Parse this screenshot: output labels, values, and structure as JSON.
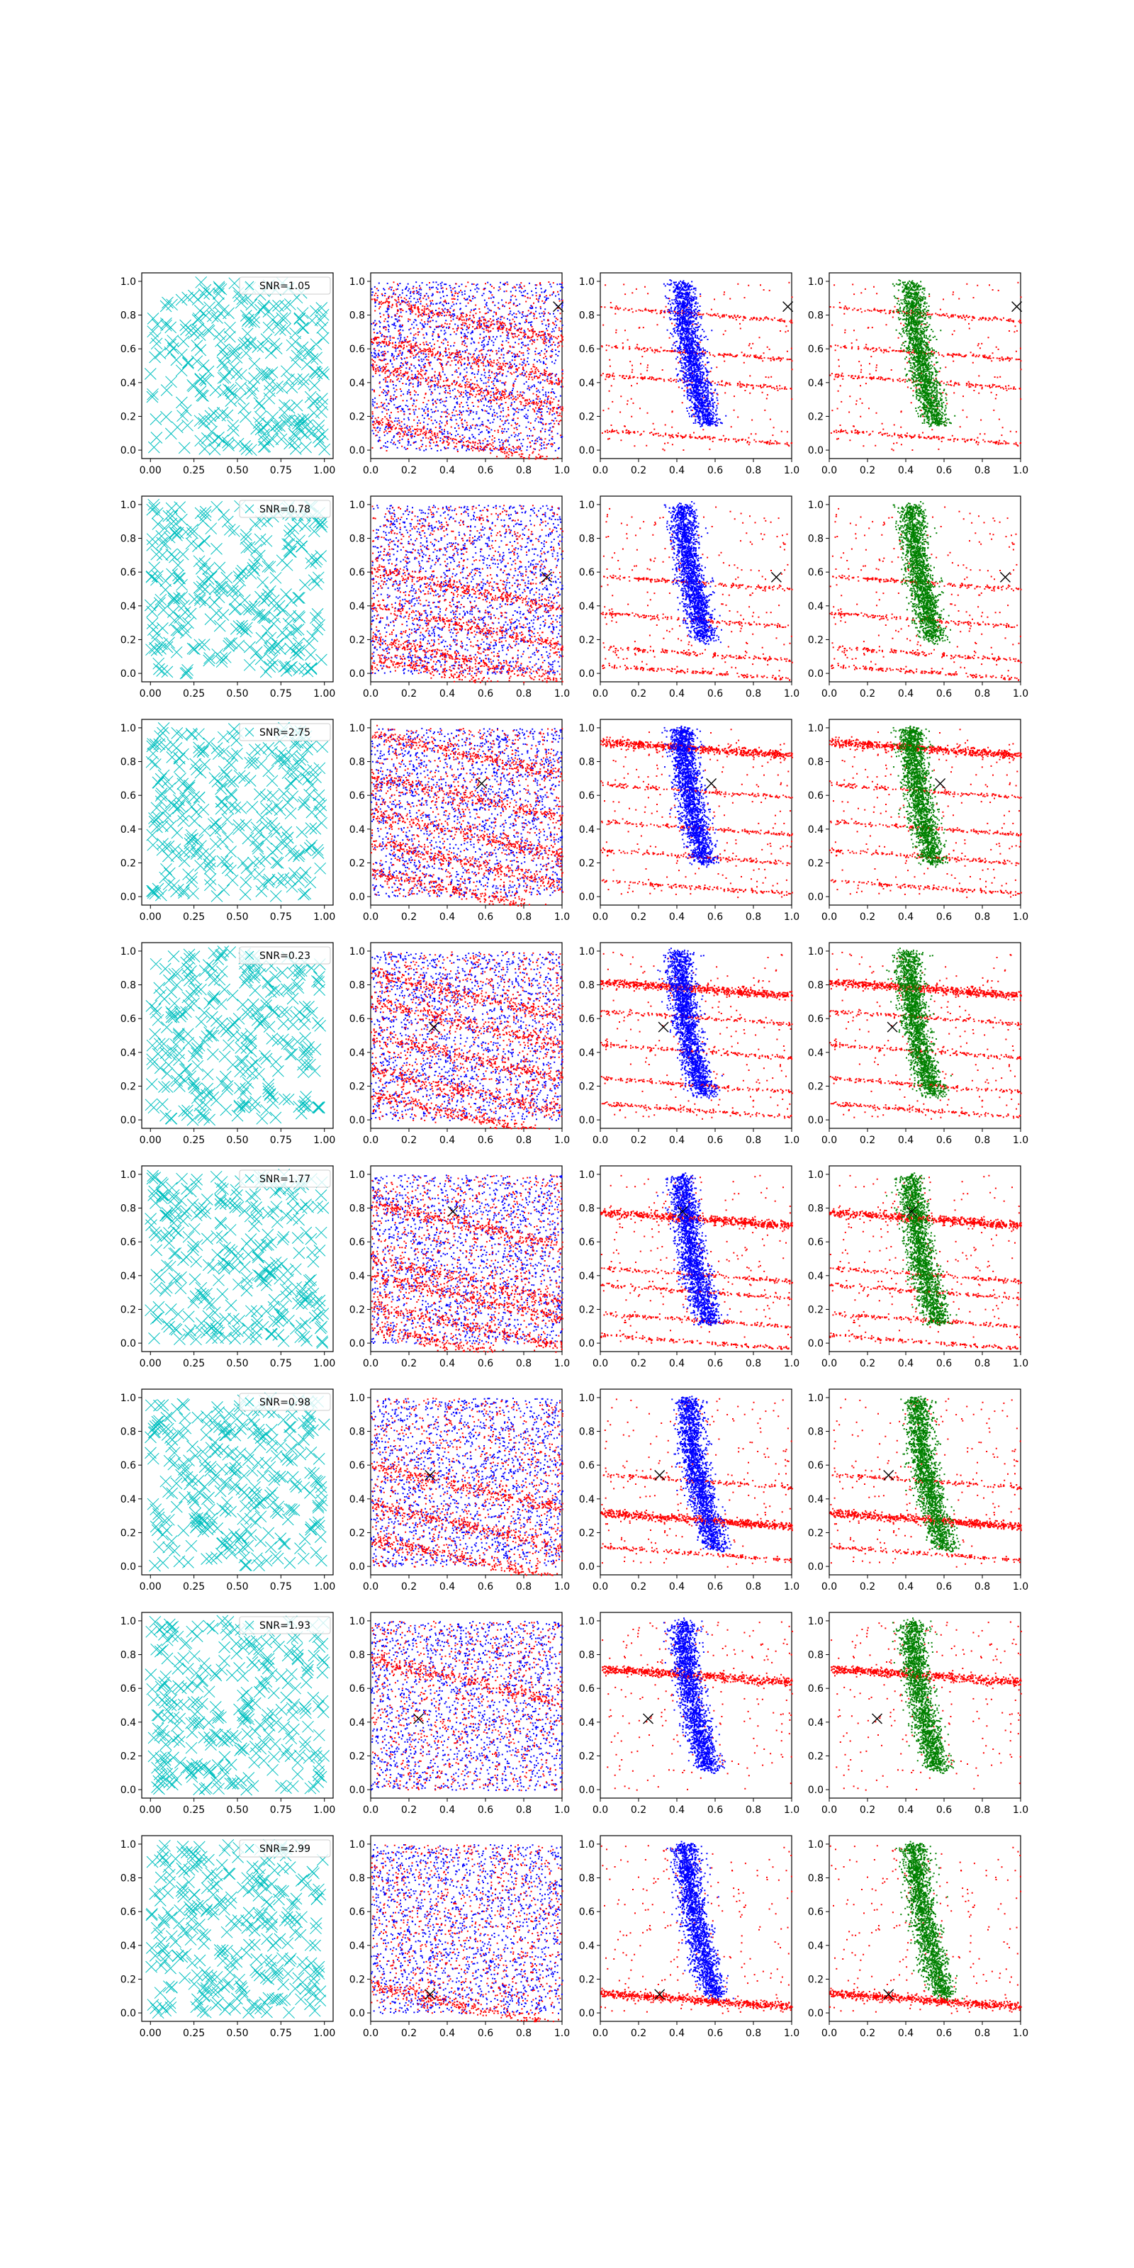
{
  "figure": {
    "rows": 8,
    "cols": 4
  },
  "colors": {
    "cross": "#00bfbf",
    "red": "#ff0000",
    "blue": "#0000ff",
    "green": "#008000",
    "marker": "#000000"
  },
  "ticks": {
    "col0": [
      "0.00",
      "0.25",
      "0.50",
      "0.75",
      "1.00"
    ],
    "col0_y": [
      "0.0",
      "0.2",
      "0.4",
      "0.6",
      "0.8",
      "1.0"
    ],
    "other": [
      "0.0",
      "0.2",
      "0.4",
      "0.6",
      "0.8",
      "1.0"
    ]
  },
  "chart_data": [
    {
      "type": "scatter",
      "row": 1,
      "legend": "SNR=1.05",
      "marker_x": 0.98,
      "marker_y": 0.85,
      "curve_bottom": 0.15,
      "curve_offset": 0.0,
      "stripes": [
        0.12,
        0.45,
        0.62,
        0.85
      ],
      "dense_stripe": null
    },
    {
      "type": "scatter",
      "row": 2,
      "legend": "SNR=0.78",
      "marker_x": 0.92,
      "marker_y": 0.57,
      "curve_bottom": 0.2,
      "curve_offset": 0.0,
      "stripes": [
        0.05,
        0.16,
        0.36,
        0.58
      ],
      "dense_stripe": null
    },
    {
      "type": "scatter",
      "row": 3,
      "legend": "SNR=2.75",
      "marker_x": 0.58,
      "marker_y": 0.67,
      "curve_bottom": 0.2,
      "curve_offset": 0.0,
      "stripes": [
        0.1,
        0.28,
        0.45,
        0.67,
        0.92
      ],
      "dense_stripe": 0.92
    },
    {
      "type": "scatter",
      "row": 4,
      "legend": "SNR=0.23",
      "marker_x": 0.33,
      "marker_y": 0.55,
      "curve_bottom": 0.15,
      "curve_offset": -0.02,
      "stripes": [
        0.1,
        0.25,
        0.45,
        0.65,
        0.82
      ],
      "dense_stripe": 0.82
    },
    {
      "type": "scatter",
      "row": 5,
      "legend": "SNR=1.77",
      "marker_x": 0.43,
      "marker_y": 0.78,
      "curve_bottom": 0.12,
      "curve_offset": 0.0,
      "stripes": [
        0.05,
        0.18,
        0.35,
        0.45,
        0.78
      ],
      "dense_stripe": 0.78
    },
    {
      "type": "scatter",
      "row": 6,
      "legend": "SNR=0.98",
      "marker_x": 0.31,
      "marker_y": 0.54,
      "curve_bottom": 0.1,
      "curve_offset": 0.03,
      "stripes": [
        0.12,
        0.32,
        0.55
      ],
      "dense_stripe": 0.32
    },
    {
      "type": "scatter",
      "row": 7,
      "legend": "SNR=1.93",
      "marker_x": 0.25,
      "marker_y": 0.42,
      "curve_bottom": 0.12,
      "curve_offset": 0.0,
      "stripes": [
        0.72
      ],
      "dense_stripe": 0.72
    },
    {
      "type": "scatter",
      "row": 8,
      "legend": "SNR=2.99",
      "marker_x": 0.31,
      "marker_y": 0.11,
      "curve_bottom": 0.1,
      "curve_offset": 0.02,
      "stripes": [
        0.12
      ],
      "dense_stripe": 0.12
    }
  ]
}
